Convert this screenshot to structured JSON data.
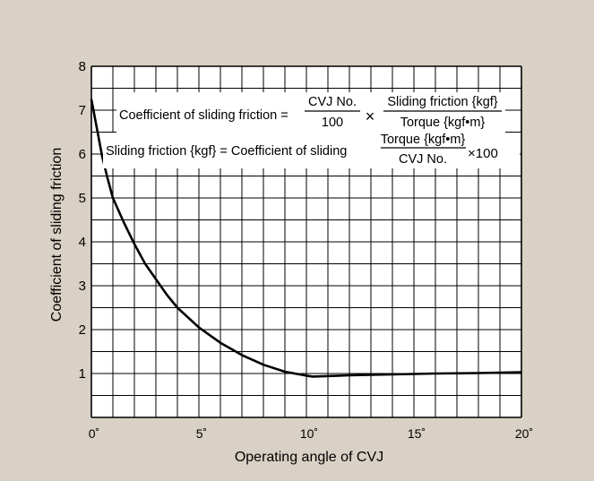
{
  "chart_data": {
    "type": "line",
    "title": "",
    "xlabel": "Operating angle of CVJ",
    "ylabel": "Coefficient of sliding friction",
    "xlim": [
      0,
      20
    ],
    "ylim": [
      0,
      8
    ],
    "x_ticks": [
      0,
      5,
      10,
      15,
      20
    ],
    "x_tick_labels": [
      "0˚",
      "5˚",
      "10˚",
      "15˚",
      "20˚"
    ],
    "y_ticks": [
      1,
      2,
      3,
      4,
      5,
      6,
      7,
      8
    ],
    "y_tick_labels": [
      "1",
      "2",
      "3",
      "4",
      "5",
      "6",
      "7",
      "8"
    ],
    "grid": true,
    "series": [
      {
        "x": [
          0,
          0.25,
          0.5,
          0.75,
          1,
          1.5,
          2,
          2.5,
          3,
          3.5,
          4,
          5,
          6,
          7,
          8,
          9,
          10,
          10.3,
          12,
          14,
          16,
          18,
          20
        ],
        "y": [
          7.25,
          6.6,
          5.95,
          5.45,
          5.0,
          4.45,
          3.95,
          3.5,
          3.15,
          2.8,
          2.5,
          2.05,
          1.7,
          1.42,
          1.2,
          1.04,
          0.95,
          0.93,
          0.96,
          0.98,
          1.0,
          1.01,
          1.03
        ]
      }
    ]
  },
  "formula1": {
    "lhs": "Coefficient of sliding friction =",
    "frac1_num": "CVJ No.",
    "frac1_den": "100",
    "times": "×",
    "frac2_num": "Sliding friction {kgf}",
    "frac2_den": "Torque {kgf•m}"
  },
  "formula2": {
    "lhs": "Sliding friction {kgf} = Coefficient of sliding",
    "frac_num": "Torque {kgf•m}",
    "frac_den": "CVJ No.",
    "tail": "×100"
  },
  "colors": {
    "background": "#d9d1c5",
    "plot_area": "#ffffff",
    "grid": "#000000",
    "curve": "#000000"
  }
}
